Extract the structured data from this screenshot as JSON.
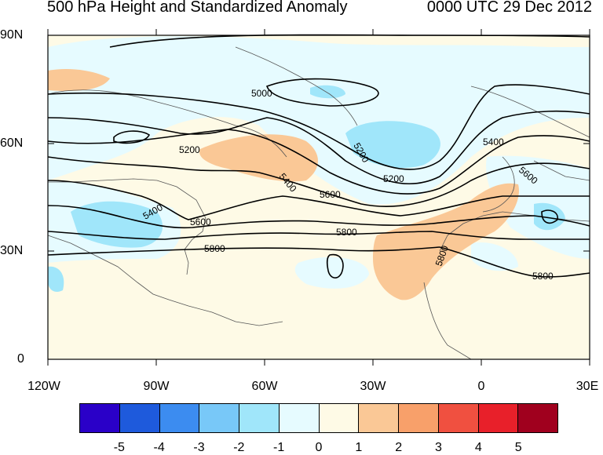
{
  "title_left": "500 hPa Height and Standardized Anomaly",
  "title_right": "0000 UTC 29 Dec 2012",
  "lat_labels": [
    "90N",
    "60N",
    "30N",
    "0"
  ],
  "lon_labels": [
    "120W",
    "90W",
    "60W",
    "30W",
    "0",
    "30E"
  ],
  "contour_labels": [
    "5000",
    "5200",
    "5200",
    "5200",
    "5400",
    "5400",
    "5400",
    "5600",
    "5600",
    "5600",
    "5800",
    "5800",
    "5800",
    "5800"
  ],
  "colorbar": {
    "colors": [
      "#2a00c8",
      "#1e5adc",
      "#3c8cf0",
      "#78c8f8",
      "#a0e6fa",
      "#e6fbff",
      "#fefae6",
      "#fac896",
      "#f8a06a",
      "#f05040",
      "#e8202a",
      "#a0001e"
    ],
    "labels": [
      "-5",
      "-4",
      "-3",
      "-2",
      "-1",
      "0",
      "1",
      "2",
      "3",
      "4",
      "5"
    ]
  },
  "colors": {
    "ocean_neutral": "#fefae6",
    "neg_1": "#e6fbff",
    "neg_2": "#a0e6fa",
    "pos_1": "#fac896",
    "contour": "#000000"
  }
}
